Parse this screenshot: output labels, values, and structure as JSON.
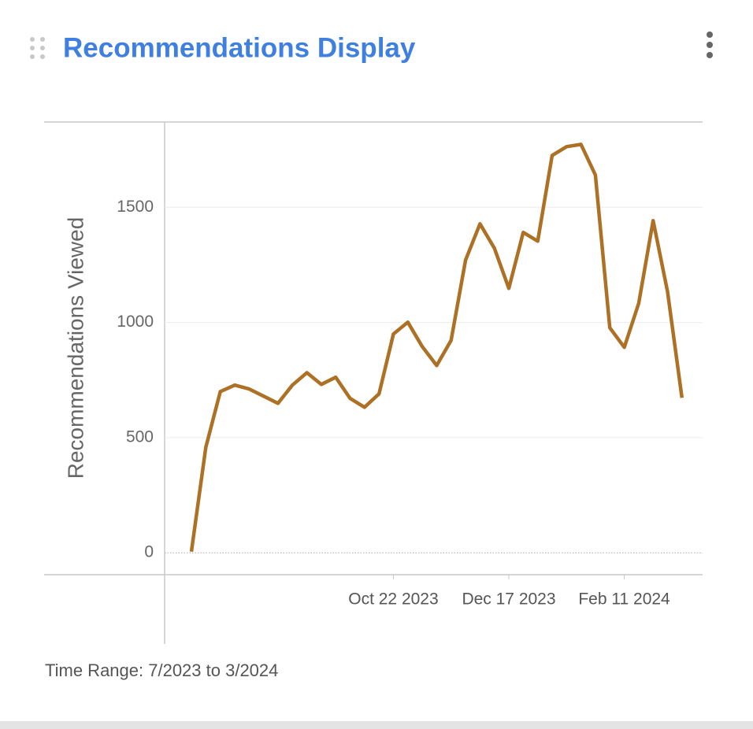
{
  "widget": {
    "title": "Recommendations Display",
    "footer": "Time Range: 7/2023 to 3/2024"
  },
  "chart_data": {
    "type": "line",
    "y_label": "Recommendations Viewed",
    "color": "#ad7126",
    "x": [
      "2023-07-16",
      "2023-07-23",
      "2023-07-30",
      "2023-08-06",
      "2023-08-13",
      "2023-08-20",
      "2023-08-27",
      "2023-09-03",
      "2023-09-10",
      "2023-09-17",
      "2023-09-24",
      "2023-10-01",
      "2023-10-08",
      "2023-10-15",
      "2023-10-22",
      "2023-10-29",
      "2023-11-05",
      "2023-11-12",
      "2023-11-19",
      "2023-11-26",
      "2023-12-03",
      "2023-12-10",
      "2023-12-17",
      "2023-12-24",
      "2023-12-31",
      "2024-01-07",
      "2024-01-14",
      "2024-01-21",
      "2024-01-28",
      "2024-02-04",
      "2024-02-11",
      "2024-02-18",
      "2024-02-25",
      "2024-03-03",
      "2024-03-10"
    ],
    "values": [
      5,
      458,
      700,
      728,
      711,
      680,
      649,
      728,
      782,
      731,
      762,
      670,
      632,
      690,
      950,
      1001,
      895,
      813,
      922,
      1271,
      1428,
      1322,
      1148,
      1391,
      1353,
      1725,
      1763,
      1773,
      1640,
      977,
      892,
      1083,
      1442,
      1134,
      673
    ],
    "xlim": [
      "2023-07-03",
      "2024-03-20"
    ],
    "xticks": [
      {
        "value": "2023-10-22",
        "label": "Oct 22 2023"
      },
      {
        "value": "2023-12-17",
        "label": "Dec 17 2023"
      },
      {
        "value": "2024-02-11",
        "label": "Feb 11 2024"
      }
    ],
    "ylim": [
      -95,
      1870
    ],
    "yticks": [
      0,
      500,
      1000,
      1500
    ],
    "grid": true
  }
}
